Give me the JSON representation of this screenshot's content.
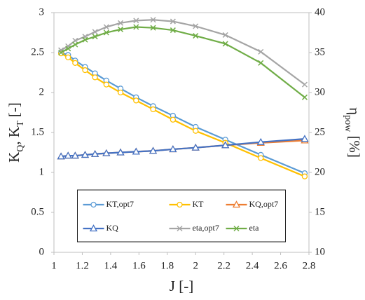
{
  "chart_data": {
    "type": "line",
    "xlabel": "J [-]",
    "ylabel": [
      "K",
      "Q",
      ", K",
      "T",
      " [-]"
    ],
    "y2label": [
      "η",
      "pow",
      " [%]"
    ],
    "x": [
      1.05,
      1.1,
      1.15,
      1.22,
      1.29,
      1.37,
      1.47,
      1.58,
      1.7,
      1.84,
      2.0,
      2.21,
      2.46,
      2.77
    ],
    "xlim": [
      1,
      2.8
    ],
    "xticks": [
      1,
      1.2,
      1.4,
      1.6,
      1.8,
      2,
      2.2,
      2.4,
      2.6,
      2.8
    ],
    "ylim": [
      0,
      3
    ],
    "yticks": [
      0,
      0.5,
      1,
      1.5,
      2,
      2.5,
      3
    ],
    "y2lim": [
      10,
      40
    ],
    "y2ticks": [
      10,
      15,
      20,
      25,
      30,
      35,
      40
    ],
    "grid": false,
    "legend": "lower center",
    "series": [
      {
        "name": "KT,opt7",
        "color": "#5b9bd5",
        "marker": "circle",
        "values": [
          2.5,
          2.47,
          2.4,
          2.32,
          2.24,
          2.15,
          2.05,
          1.94,
          1.83,
          1.71,
          1.57,
          1.41,
          1.22,
          0.99
        ]
      },
      {
        "name": "KT",
        "color": "#ffc000",
        "marker": "circle",
        "values": [
          2.49,
          2.44,
          2.37,
          2.28,
          2.19,
          2.1,
          2.0,
          1.9,
          1.79,
          1.66,
          1.52,
          1.37,
          1.18,
          0.95
        ]
      },
      {
        "name": "KQ,opt7",
        "color": "#ed7d31",
        "marker": "triangle",
        "values": [
          1.2,
          1.21,
          1.21,
          1.22,
          1.23,
          1.24,
          1.25,
          1.26,
          1.27,
          1.29,
          1.31,
          1.34,
          1.37,
          1.4
        ]
      },
      {
        "name": "KQ",
        "color": "#4472c4",
        "marker": "triangle",
        "values": [
          1.2,
          1.21,
          1.21,
          1.22,
          1.23,
          1.24,
          1.25,
          1.26,
          1.27,
          1.29,
          1.31,
          1.34,
          1.38,
          1.42
        ]
      },
      {
        "name": "eta,opt7",
        "color": "#a5a5a5",
        "marker": "x",
        "axis": "y2",
        "values": [
          35.3,
          35.8,
          36.5,
          37.0,
          37.6,
          38.2,
          38.7,
          39.0,
          39.1,
          38.9,
          38.3,
          37.2,
          35.1,
          31.0
        ]
      },
      {
        "name": "eta",
        "color": "#70ad47",
        "marker": "x",
        "axis": "y2",
        "values": [
          35.0,
          35.5,
          36.0,
          36.6,
          37.0,
          37.5,
          37.9,
          38.2,
          38.1,
          37.8,
          37.1,
          36.1,
          33.7,
          29.4
        ]
      }
    ]
  }
}
